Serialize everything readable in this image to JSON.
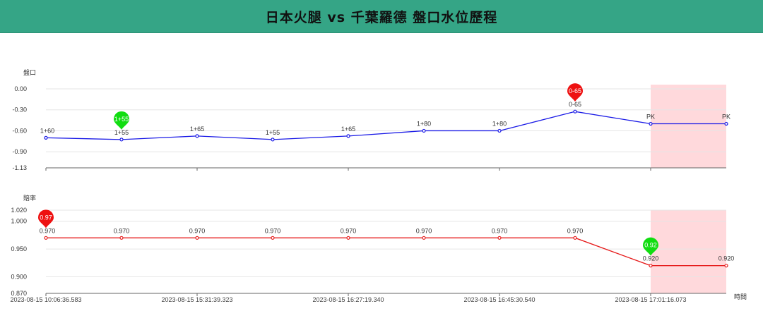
{
  "header": {
    "title": "日本火腿 vs 千葉羅德 盤口水位歷程"
  },
  "colors": {
    "header_bg": "#35a586",
    "line_top": "#1a1ae6",
    "line_bottom": "#e61a1a",
    "pin_max": "#ee1111",
    "pin_min": "#11dd11",
    "highlight": "#ffd9dc"
  },
  "chart_data": [
    {
      "type": "line",
      "ylabel": "盤口",
      "ylim": [
        -1.13,
        0.06
      ],
      "yticks": [
        0.0,
        -0.3,
        -0.6,
        -0.9,
        -1.13
      ],
      "ytick_labels": [
        "0.00",
        "-0.30",
        "-0.60",
        "-0.90",
        "-1.13"
      ],
      "series": [
        {
          "values": [
            -0.7,
            -0.725,
            -0.675,
            -0.725,
            -0.675,
            -0.6,
            -0.6,
            -0.325,
            -0.5,
            -0.5
          ],
          "labels": [
            "1+60",
            "1+55",
            "1+65",
            "1+55",
            "1+65",
            "1+80",
            "1+80",
            "0-65",
            "PK",
            "PK"
          ]
        }
      ],
      "markers": [
        {
          "index": 1,
          "text": "1+55",
          "kind": "min"
        },
        {
          "index": 7,
          "text": "0-65",
          "kind": "max"
        }
      ],
      "highlight_range": [
        8,
        9
      ]
    },
    {
      "type": "line",
      "ylabel": "賠率",
      "xlabel": "時間",
      "ylim": [
        0.87,
        1.02
      ],
      "yticks": [
        1.02,
        1.0,
        0.95,
        0.9,
        0.87
      ],
      "ytick_labels": [
        "1.020",
        "1.000",
        "0.950",
        "0.900",
        "0.870"
      ],
      "x_tick_labels": [
        {
          "index": 0,
          "text": "2023-08-15 10:06:36.583"
        },
        {
          "index": 2,
          "text": "2023-08-15 15:31:39.323"
        },
        {
          "index": 4,
          "text": "2023-08-15 16:27:19.340"
        },
        {
          "index": 6,
          "text": "2023-08-15 16:45:30.540"
        },
        {
          "index": 8,
          "text": "2023-08-15 17:01:16.073"
        }
      ],
      "series": [
        {
          "values": [
            0.97,
            0.97,
            0.97,
            0.97,
            0.97,
            0.97,
            0.97,
            0.97,
            0.92,
            0.92
          ],
          "labels": [
            "0.970",
            "0.970",
            "0.970",
            "0.970",
            "0.970",
            "0.970",
            "0.970",
            "0.970",
            "0.920",
            "0.920"
          ]
        }
      ],
      "markers": [
        {
          "index": 0,
          "text": "0.97",
          "kind": "max"
        },
        {
          "index": 8,
          "text": "0.92",
          "kind": "min"
        }
      ],
      "highlight_range": [
        8,
        9
      ]
    }
  ]
}
